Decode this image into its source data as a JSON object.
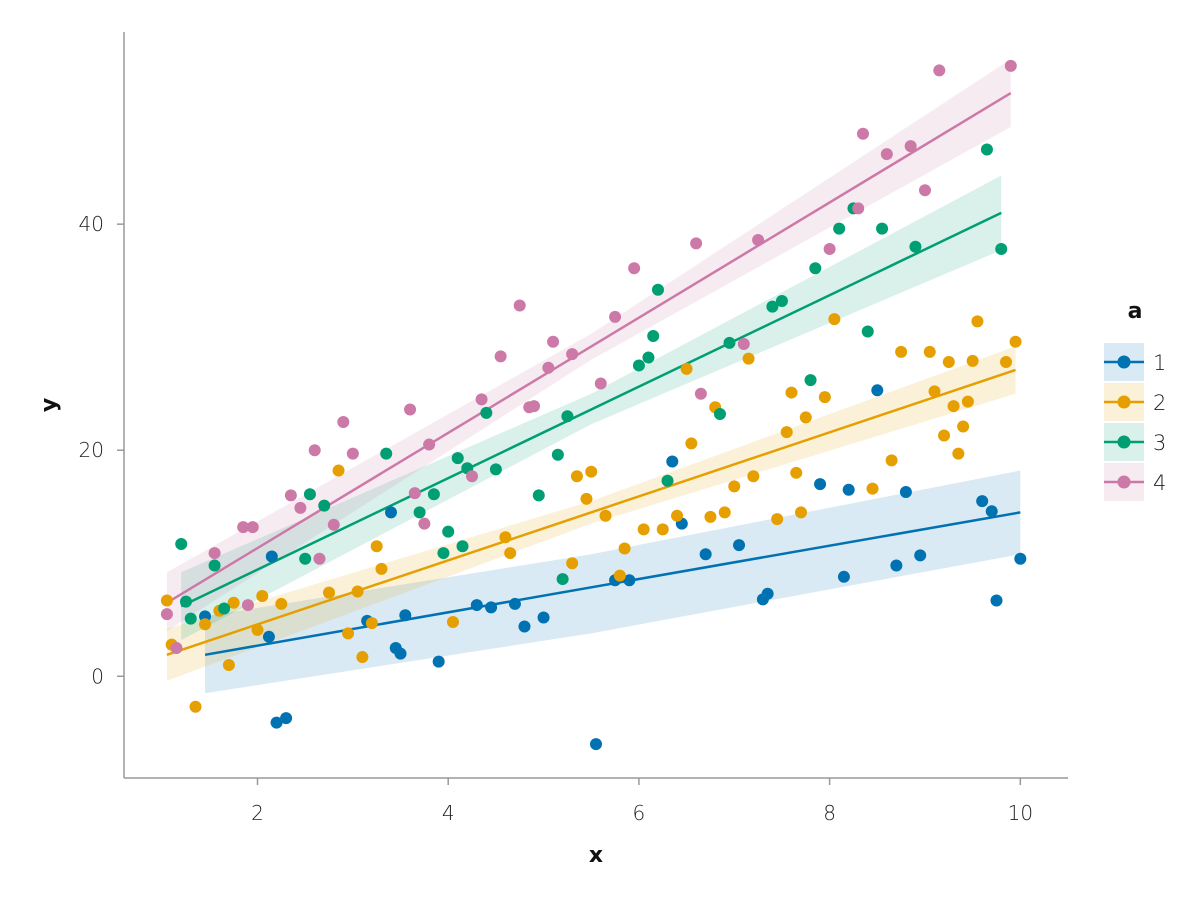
{
  "chart_data": {
    "type": "scatter",
    "xlabel": "x",
    "ylabel": "y",
    "xlim": [
      0.6,
      10.5
    ],
    "ylim": [
      -9,
      57
    ],
    "xticks": [
      2,
      4,
      6,
      8,
      10
    ],
    "yticks": [
      0,
      20,
      40
    ],
    "grid": false,
    "legend": {
      "title": "a",
      "position": "right"
    },
    "series": [
      {
        "name": "1",
        "color": "#0072B2",
        "points": [
          [
            1.45,
            5.3
          ],
          [
            2.15,
            10.6
          ],
          [
            2.12,
            3.5
          ],
          [
            2.2,
            -4.1
          ],
          [
            2.3,
            -3.7
          ],
          [
            3.15,
            4.9
          ],
          [
            3.4,
            14.5
          ],
          [
            3.45,
            2.5
          ],
          [
            3.5,
            2.0
          ],
          [
            3.55,
            5.4
          ],
          [
            3.9,
            1.3
          ],
          [
            4.3,
            6.3
          ],
          [
            4.45,
            6.1
          ],
          [
            4.7,
            6.4
          ],
          [
            4.8,
            4.4
          ],
          [
            5.0,
            5.2
          ],
          [
            5.55,
            -6.0
          ],
          [
            5.75,
            8.5
          ],
          [
            5.9,
            8.5
          ],
          [
            6.35,
            19.0
          ],
          [
            6.45,
            13.5
          ],
          [
            6.7,
            10.8
          ],
          [
            7.05,
            11.6
          ],
          [
            7.3,
            6.8
          ],
          [
            7.35,
            7.3
          ],
          [
            7.9,
            17.0
          ],
          [
            8.15,
            8.8
          ],
          [
            8.2,
            16.5
          ],
          [
            8.5,
            25.3
          ],
          [
            8.7,
            9.8
          ],
          [
            8.8,
            16.3
          ],
          [
            8.95,
            10.7
          ],
          [
            9.6,
            15.5
          ],
          [
            9.7,
            14.6
          ],
          [
            9.75,
            6.7
          ],
          [
            10.0,
            10.4
          ]
        ],
        "fit": {
          "x0": 1.45,
          "y0": 1.9,
          "x1": 10.0,
          "y1": 14.5
        },
        "band": [
          [
            1.45,
            -1.5,
            5.3
          ],
          [
            5.5,
            3.8,
            10.8
          ],
          [
            10.0,
            10.8,
            18.2
          ]
        ]
      },
      {
        "name": "2",
        "color": "#E69F00",
        "points": [
          [
            1.05,
            6.7
          ],
          [
            1.1,
            2.8
          ],
          [
            1.35,
            -2.7
          ],
          [
            1.45,
            4.6
          ],
          [
            1.6,
            5.8
          ],
          [
            1.7,
            1.0
          ],
          [
            1.75,
            6.5
          ],
          [
            2.0,
            4.1
          ],
          [
            2.05,
            7.1
          ],
          [
            2.25,
            6.4
          ],
          [
            2.75,
            7.4
          ],
          [
            2.85,
            18.2
          ],
          [
            2.95,
            3.8
          ],
          [
            3.05,
            7.5
          ],
          [
            3.1,
            1.7
          ],
          [
            3.2,
            4.7
          ],
          [
            3.25,
            11.5
          ],
          [
            3.3,
            9.5
          ],
          [
            4.05,
            4.8
          ],
          [
            4.6,
            12.3
          ],
          [
            4.65,
            10.9
          ],
          [
            5.3,
            10.0
          ],
          [
            5.35,
            17.7
          ],
          [
            5.45,
            15.7
          ],
          [
            5.5,
            18.1
          ],
          [
            5.65,
            14.2
          ],
          [
            5.8,
            8.9
          ],
          [
            5.85,
            11.3
          ],
          [
            6.05,
            13.0
          ],
          [
            6.25,
            13.0
          ],
          [
            6.4,
            14.2
          ],
          [
            6.5,
            27.2
          ],
          [
            6.55,
            20.6
          ],
          [
            6.75,
            14.1
          ],
          [
            6.8,
            23.8
          ],
          [
            6.9,
            14.5
          ],
          [
            7.0,
            16.8
          ],
          [
            7.15,
            28.1
          ],
          [
            7.2,
            17.7
          ],
          [
            7.45,
            13.9
          ],
          [
            7.55,
            21.6
          ],
          [
            7.6,
            25.1
          ],
          [
            7.65,
            18.0
          ],
          [
            7.7,
            14.5
          ],
          [
            7.75,
            22.9
          ],
          [
            7.95,
            24.7
          ],
          [
            8.05,
            31.6
          ],
          [
            8.45,
            16.6
          ],
          [
            8.65,
            19.1
          ],
          [
            8.75,
            28.7
          ],
          [
            9.05,
            28.7
          ],
          [
            9.1,
            25.2
          ],
          [
            9.2,
            21.3
          ],
          [
            9.25,
            27.8
          ],
          [
            9.3,
            23.9
          ],
          [
            9.35,
            19.7
          ],
          [
            9.4,
            22.1
          ],
          [
            9.45,
            24.3
          ],
          [
            9.5,
            27.9
          ],
          [
            9.55,
            31.4
          ],
          [
            9.85,
            27.8
          ],
          [
            9.95,
            29.6
          ]
        ],
        "fit": {
          "x0": 1.05,
          "y0": 1.9,
          "x1": 9.95,
          "y1": 27.1
        },
        "band": [
          [
            1.05,
            -0.4,
            4.2
          ],
          [
            5.5,
            13.5,
            15.5
          ],
          [
            9.95,
            25.0,
            29.2
          ]
        ]
      },
      {
        "name": "3",
        "color": "#009E73",
        "points": [
          [
            1.2,
            11.7
          ],
          [
            1.25,
            6.6
          ],
          [
            1.3,
            5.1
          ],
          [
            1.55,
            9.8
          ],
          [
            1.65,
            6.0
          ],
          [
            2.5,
            10.4
          ],
          [
            2.55,
            16.1
          ],
          [
            2.7,
            15.1
          ],
          [
            3.35,
            19.7
          ],
          [
            3.7,
            14.5
          ],
          [
            3.85,
            16.1
          ],
          [
            3.95,
            10.9
          ],
          [
            4.0,
            12.8
          ],
          [
            4.1,
            19.3
          ],
          [
            4.15,
            11.5
          ],
          [
            4.2,
            18.4
          ],
          [
            4.4,
            23.3
          ],
          [
            4.5,
            18.3
          ],
          [
            4.95,
            16.0
          ],
          [
            5.15,
            19.6
          ],
          [
            5.2,
            8.6
          ],
          [
            5.25,
            23.0
          ],
          [
            6.0,
            27.5
          ],
          [
            6.1,
            28.2
          ],
          [
            6.15,
            30.1
          ],
          [
            6.2,
            34.2
          ],
          [
            6.3,
            17.3
          ],
          [
            6.85,
            23.2
          ],
          [
            6.95,
            29.5
          ],
          [
            7.4,
            32.7
          ],
          [
            7.5,
            33.2
          ],
          [
            7.8,
            26.2
          ],
          [
            7.85,
            36.1
          ],
          [
            8.1,
            39.6
          ],
          [
            8.25,
            41.4
          ],
          [
            8.4,
            30.5
          ],
          [
            8.55,
            39.6
          ],
          [
            8.9,
            38.0
          ],
          [
            9.65,
            46.6
          ],
          [
            9.8,
            37.8
          ]
        ],
        "fit": {
          "x0": 1.2,
          "y0": 6.2,
          "x1": 9.8,
          "y1": 41.0
        },
        "band": [
          [
            1.2,
            3.2,
            9.2
          ],
          [
            5.5,
            22.3,
            25.0
          ],
          [
            9.8,
            37.7,
            44.3
          ]
        ]
      },
      {
        "name": "4",
        "color": "#CC79A7",
        "points": [
          [
            1.05,
            5.5
          ],
          [
            1.15,
            2.5
          ],
          [
            1.55,
            10.9
          ],
          [
            1.85,
            13.2
          ],
          [
            1.9,
            6.3
          ],
          [
            1.95,
            13.2
          ],
          [
            2.35,
            16.0
          ],
          [
            2.45,
            14.9
          ],
          [
            2.6,
            20.0
          ],
          [
            2.65,
            10.4
          ],
          [
            2.8,
            13.4
          ],
          [
            2.9,
            22.5
          ],
          [
            3.0,
            19.7
          ],
          [
            3.6,
            23.6
          ],
          [
            3.65,
            16.2
          ],
          [
            3.75,
            13.5
          ],
          [
            3.8,
            20.5
          ],
          [
            4.25,
            17.7
          ],
          [
            4.35,
            24.5
          ],
          [
            4.55,
            28.3
          ],
          [
            4.75,
            32.8
          ],
          [
            4.85,
            23.8
          ],
          [
            4.9,
            23.9
          ],
          [
            5.05,
            27.3
          ],
          [
            5.1,
            29.6
          ],
          [
            5.3,
            28.5
          ],
          [
            5.6,
            25.9
          ],
          [
            5.75,
            31.8
          ],
          [
            5.95,
            36.1
          ],
          [
            6.6,
            38.3
          ],
          [
            6.65,
            25.0
          ],
          [
            7.1,
            29.4
          ],
          [
            7.25,
            38.6
          ],
          [
            8.0,
            37.8
          ],
          [
            8.3,
            41.4
          ],
          [
            8.35,
            48.0
          ],
          [
            8.6,
            46.2
          ],
          [
            8.85,
            46.9
          ],
          [
            9.0,
            43.0
          ],
          [
            9.15,
            53.6
          ],
          [
            9.9,
            54.0
          ]
        ],
        "fit": {
          "x0": 1.05,
          "y0": 6.5,
          "x1": 9.9,
          "y1": 51.6
        },
        "band": [
          [
            1.05,
            4.0,
            9.2
          ],
          [
            5.5,
            28.0,
            30.3
          ],
          [
            9.9,
            48.6,
            54.6
          ]
        ]
      }
    ]
  }
}
